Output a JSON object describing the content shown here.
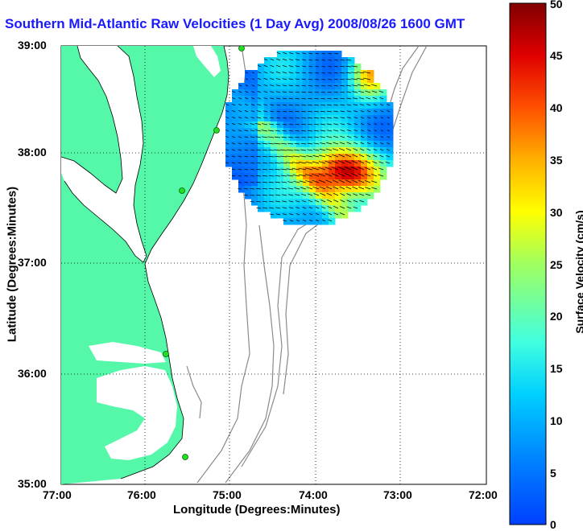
{
  "title": "Southern Mid-Atlantic Raw Velocities (1 Day Avg) 2008/08/26 1600 GMT",
  "map": {
    "xlabel": "Longitude (Degrees:Minutes)",
    "ylabel": "Latitude (Degrees:Minutes)",
    "x_ticks": [
      "77:00",
      "76:00",
      "75:00",
      "74:00",
      "73:00",
      "72:00"
    ],
    "y_ticks": [
      "39:00",
      "38:00",
      "37:00",
      "36:00",
      "35:00"
    ],
    "land_color": "#55f7a8",
    "water_color": "#ffffff"
  },
  "colorbar": {
    "label": "Surface Velocity (cm/s)",
    "ticks": [
      "50",
      "45",
      "40",
      "35",
      "30",
      "25",
      "20",
      "15",
      "10",
      "5",
      "0"
    ],
    "colormap": "jet"
  }
}
